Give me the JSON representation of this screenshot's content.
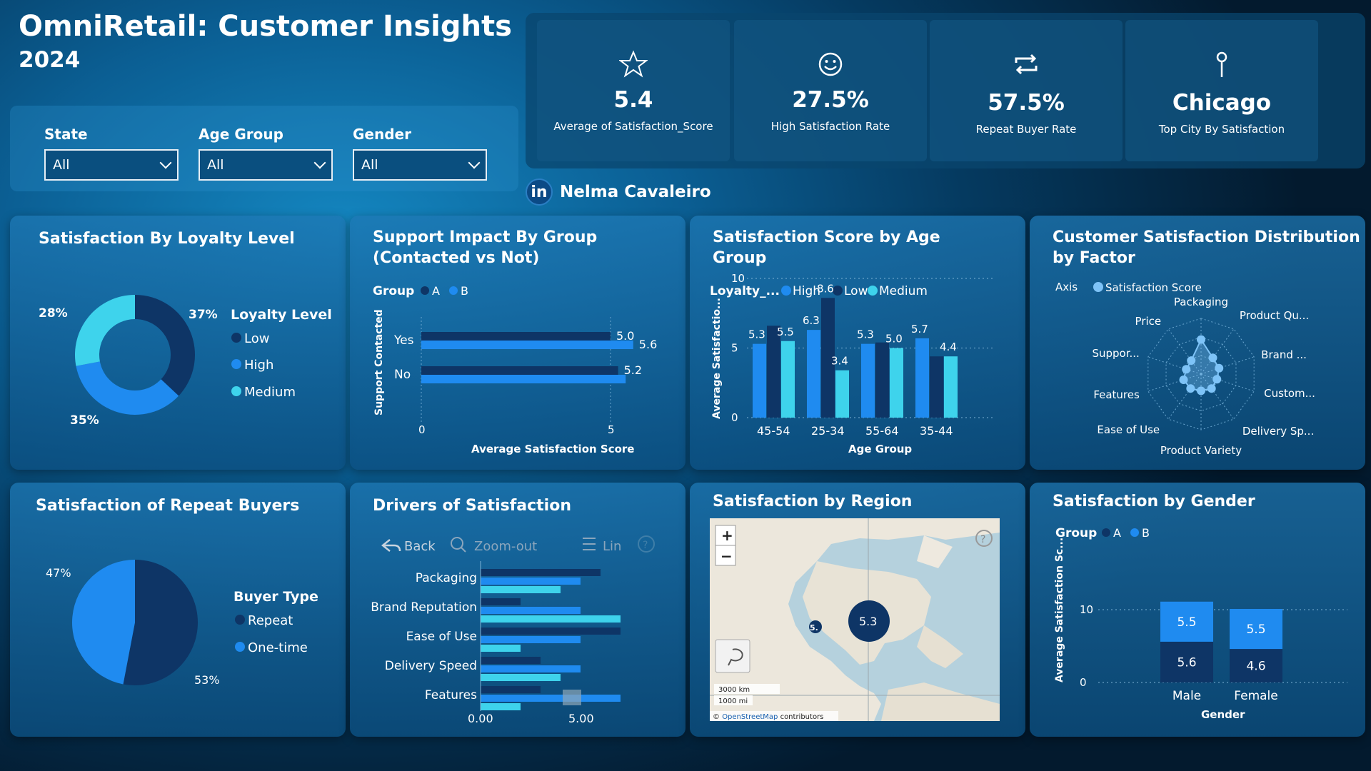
{
  "header": {
    "title": "OmniRetail: Customer Insights",
    "year": "2024"
  },
  "filters": [
    {
      "label": "State",
      "value": "All"
    },
    {
      "label": "Age Group",
      "value": "All"
    },
    {
      "label": "Gender",
      "value": "All"
    }
  ],
  "kpis": [
    {
      "value": "5.4",
      "caption": "Average of Satisfaction_Score",
      "icon": "star-icon"
    },
    {
      "value": "27.5%",
      "caption": "High Satisfaction Rate",
      "icon": "smiley-icon"
    },
    {
      "value": "57.5%",
      "caption": "Repeat Buyer Rate",
      "icon": "repeat-icon"
    },
    {
      "value": "Chicago",
      "caption": "Top City By Satisfaction",
      "icon": "pin-icon"
    }
  ],
  "author": {
    "name": "Nelma Cavaleiro",
    "badge": "in"
  },
  "colors": {
    "dark": "#0e3566",
    "blue": "#1f8bf0",
    "light": "#3ed3ec"
  },
  "loyalty": {
    "title": "Satisfaction By Loyalty Level",
    "legend_title": "Loyalty Level",
    "segments": [
      {
        "label": "Low",
        "pct": 37,
        "pct_label": "37%"
      },
      {
        "label": "High",
        "pct": 35,
        "pct_label": "35%"
      },
      {
        "label": "Medium",
        "pct": 28,
        "pct_label": "28%"
      }
    ]
  },
  "support": {
    "title_l1": "Support Impact By Group",
    "title_l2": "(Contacted vs Not)",
    "legend_title": "Group",
    "legend": [
      "A",
      "B"
    ],
    "ylabel": "Support Contacted",
    "xlabel": "Average Satisfaction Score",
    "ticks": [
      "0",
      "5"
    ]
  },
  "age": {
    "title_l1": "Satisfaction Score by Age",
    "title_l2": "Group",
    "legend_title": "Loyalty_...",
    "legend": [
      "High",
      "Low",
      "Medium"
    ],
    "ylabel": "Average Satisfactio...",
    "xlabel": "Age Group",
    "ticks": [
      "0",
      "5",
      "10"
    ]
  },
  "radar": {
    "title_l1": "Customer Satisfaction Distribution",
    "title_l2": "by Factor",
    "legend_title": "Axis",
    "legend": "Satisfaction Score",
    "axes": [
      "Packaging",
      "Product Qu...",
      "Brand ...",
      "Custom...",
      "Delivery Sp...",
      "Product Variety",
      "Ease of Use",
      "Features",
      "Suppor...",
      "Price"
    ],
    "values": [
      0.62,
      0.36,
      0.34,
      0.3,
      0.32,
      0.3,
      0.32,
      0.33,
      0.28,
      0.3
    ]
  },
  "repeat": {
    "title": "Satisfaction of Repeat Buyers",
    "legend_title": "Buyer Type",
    "segments": [
      {
        "label": "Repeat",
        "pct": 53,
        "pct_label": "53%"
      },
      {
        "label": "One-time",
        "pct": 47,
        "pct_label": "47%"
      }
    ]
  },
  "drivers": {
    "title": "Drivers of Satisfaction",
    "toolbar": {
      "back": "Back",
      "zoom": "Zoom-out",
      "list": "Lin",
      "help": "?"
    },
    "ticks": [
      "0.00",
      "5.00"
    ]
  },
  "region": {
    "title": "Satisfaction by Region",
    "bubble": "5.3",
    "bubble_small": "5.",
    "zoom_in": "+",
    "zoom_out": "−",
    "help": "?",
    "scale_km": "3000 km",
    "scale_mi": "1000 mi",
    "attribution_prefix": "© ",
    "attribution_link": "OpenStreetMap",
    "attribution_suffix": " contributors"
  },
  "gender": {
    "title": "Satisfaction by Gender",
    "legend_title": "Group",
    "legend": [
      "A",
      "B"
    ],
    "ylabel": "Average Satisfaction Sc...",
    "xlabel": "Gender",
    "ticks": [
      "0",
      "10"
    ]
  },
  "chart_data": [
    {
      "type": "bar",
      "orientation": "horizontal",
      "title": "Support Impact By Group (Contacted vs Not)",
      "categories": [
        "Yes",
        "No"
      ],
      "series": [
        {
          "name": "A",
          "values": [
            5.0,
            5.2
          ]
        },
        {
          "name": "B",
          "values": [
            5.6,
            5.4
          ]
        }
      ],
      "data_labels": [
        [
          "5.0",
          "5.6"
        ],
        [
          "5.2",
          ""
        ]
      ],
      "xlabel": "Average Satisfaction Score",
      "ylabel": "Support Contacted",
      "xlim": [
        0,
        6
      ]
    },
    {
      "type": "bar",
      "title": "Satisfaction Score by Age Group",
      "categories": [
        "45-54",
        "25-34",
        "55-64",
        "35-44"
      ],
      "series": [
        {
          "name": "High",
          "values": [
            5.3,
            6.3,
            5.3,
            5.7
          ]
        },
        {
          "name": "Low",
          "values": [
            6.6,
            8.6,
            5.4,
            4.4
          ]
        },
        {
          "name": "Medium",
          "values": [
            5.5,
            3.4,
            5.0,
            4.4
          ]
        }
      ],
      "data_labels": [
        [
          "5.3",
          "6.3",
          "5.3",
          "5.7"
        ],
        [
          "",
          "8.6",
          "",
          ""
        ],
        [
          "5.5",
          "3.4",
          "5.0",
          "4.4"
        ]
      ],
      "xlabel": "Age Group",
      "ylabel": "Average Satisfactio...",
      "ylim": [
        0,
        10
      ]
    },
    {
      "type": "bar",
      "orientation": "horizontal",
      "title": "Drivers of Satisfaction",
      "categories": [
        "Packaging",
        "Brand Reputation",
        "Ease of Use",
        "Delivery Speed",
        "Features"
      ],
      "series": [
        {
          "name": "Low",
          "values": [
            6.0,
            2.0,
            7.0,
            3.0,
            3.0
          ]
        },
        {
          "name": "High",
          "values": [
            5.0,
            5.0,
            5.0,
            5.0,
            7.0
          ]
        },
        {
          "name": "Medium",
          "values": [
            4.0,
            7.0,
            2.0,
            4.0,
            2.0
          ]
        }
      ],
      "xlim": [
        0,
        8
      ]
    },
    {
      "type": "bar",
      "stacked": true,
      "title": "Satisfaction by Gender",
      "categories": [
        "Male",
        "Female"
      ],
      "series": [
        {
          "name": "A",
          "values": [
            5.6,
            4.6
          ]
        },
        {
          "name": "B",
          "values": [
            5.5,
            5.5
          ]
        }
      ],
      "xlabel": "Gender",
      "ylabel": "Average Satisfaction Sc...",
      "ylim": [
        0,
        13
      ]
    }
  ]
}
